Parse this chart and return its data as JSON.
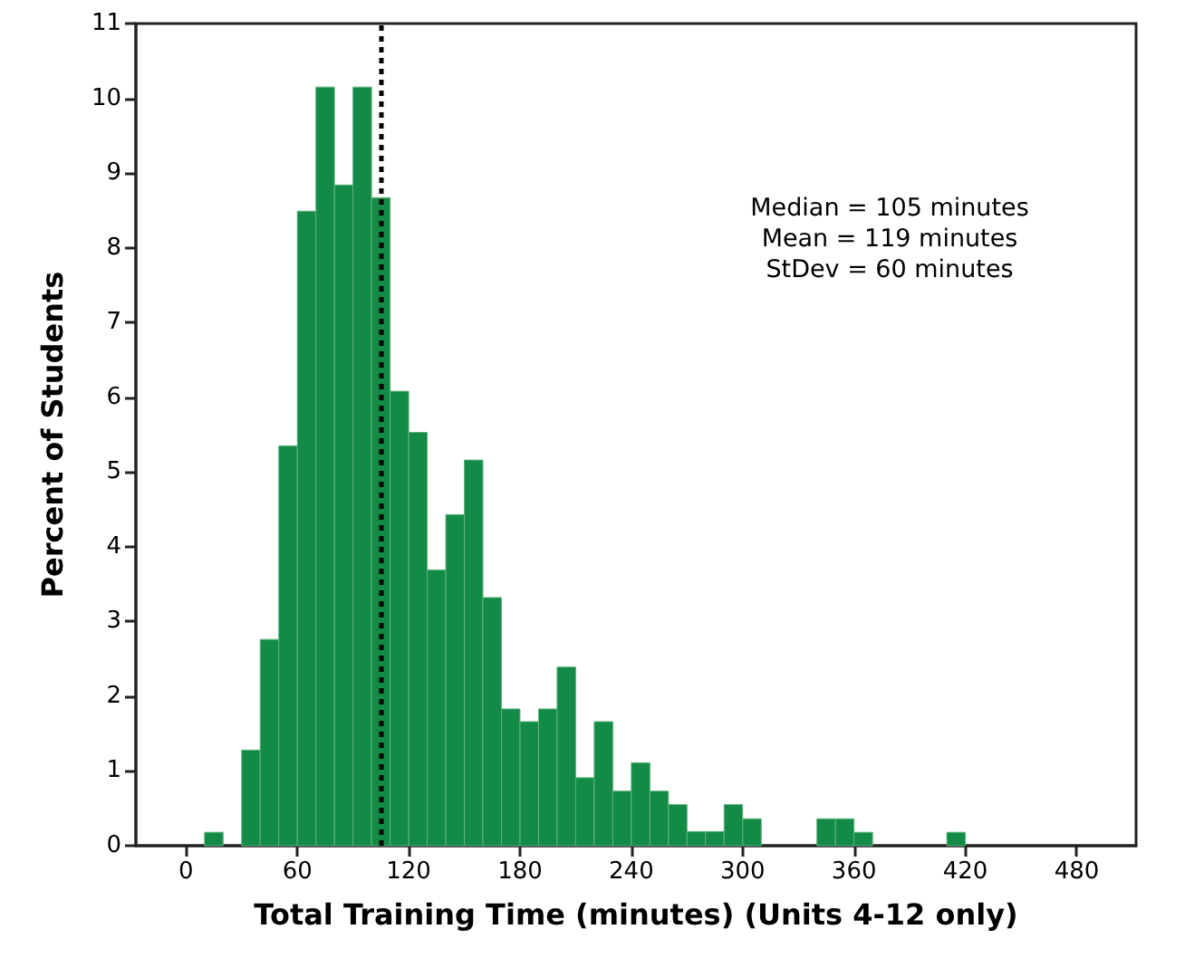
{
  "chart_data": {
    "type": "histogram",
    "xlabel": "Total Training Time (minutes) (Units 4-12 only)",
    "ylabel": "Percent of Students",
    "bins": [
      10,
      20,
      30,
      40,
      50,
      60,
      70,
      80,
      90,
      100,
      110,
      120,
      130,
      140,
      150,
      160,
      170,
      180,
      190,
      200,
      210,
      220,
      230,
      240,
      250,
      260,
      270,
      280,
      290,
      300,
      310,
      320,
      330,
      340,
      350,
      360,
      370,
      380,
      390,
      400,
      410,
      420
    ],
    "values": [
      0.18,
      0,
      1.28,
      2.76,
      5.35,
      8.49,
      10.15,
      8.84,
      10.15,
      8.67,
      6.08,
      5.53,
      3.69,
      4.43,
      5.16,
      3.32,
      1.83,
      1.66,
      1.83,
      2.39,
      0.91,
      1.66,
      0.73,
      1.11,
      0.73,
      0.55,
      0.19,
      0.19,
      0.55,
      0.36,
      0,
      0,
      0,
      0.36,
      0.36,
      0.18,
      0,
      0,
      0,
      0,
      0.18
    ],
    "color": "#138a45",
    "xlim": [
      -27,
      512
    ],
    "xticks": [
      0,
      60,
      120,
      180,
      240,
      300,
      360,
      420,
      480
    ],
    "ylim": [
      0,
      11
    ],
    "yticks": [
      0,
      1,
      2,
      3,
      4,
      5,
      6,
      7,
      8,
      9,
      10,
      11
    ],
    "grid": false,
    "ref_lines": [
      {
        "axis": "x",
        "value": 105,
        "color": "#000000",
        "line_style": "dotted"
      }
    ],
    "annotations": [
      "Median = 105 minutes",
      "Mean = 119 minutes",
      "StDev = 60 minutes"
    ]
  }
}
